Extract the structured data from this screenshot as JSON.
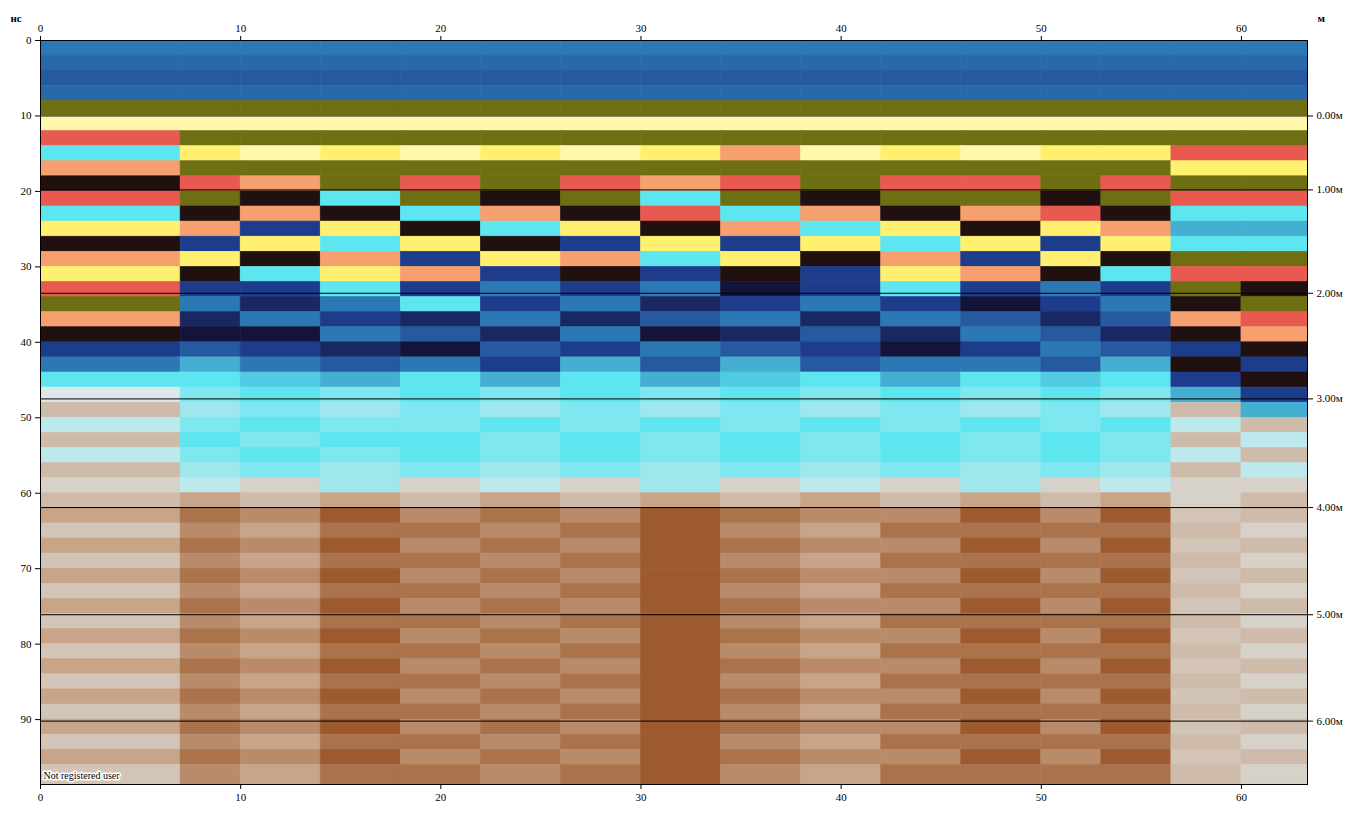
{
  "chart_data": {
    "type": "heatmap",
    "x_label": "м",
    "y_label": "нс",
    "xlim": [
      0,
      63.3
    ],
    "ylim": [
      0,
      98.6
    ],
    "y2lim": [
      0,
      98.6
    ],
    "xticks": [
      0,
      10,
      20,
      30,
      40,
      50,
      60
    ],
    "yticks": [
      0,
      10,
      20,
      30,
      40,
      50,
      60,
      70,
      80,
      90
    ],
    "y2ticks": [
      {
        "value": 10,
        "label": "0.00м"
      },
      {
        "value": 19.8,
        "label": "1.00м"
      },
      {
        "value": 33.5,
        "label": "2.00м"
      },
      {
        "value": 47.5,
        "label": "3.00м"
      },
      {
        "value": 61.9,
        "label": "4.00м"
      },
      {
        "value": 76.1,
        "label": "5.00м"
      },
      {
        "value": 90.2,
        "label": "6.00м"
      }
    ],
    "grid": true,
    "annotations": [
      {
        "text": "Not registered user"
      }
    ],
    "color_range": [
      -1,
      1
    ],
    "x_edges": [
      0,
      7,
      10,
      14,
      18,
      22,
      26,
      30,
      34,
      38,
      42,
      46,
      50,
      53,
      56.5,
      60,
      63.3
    ],
    "t_edges": [
      0,
      2,
      4,
      6,
      8,
      10,
      12,
      14,
      16,
      18,
      20,
      22,
      24,
      26,
      28,
      30,
      32,
      34,
      36,
      38,
      40,
      42,
      44,
      46,
      48,
      50,
      52,
      54,
      56,
      58,
      60,
      62,
      64,
      66,
      68,
      70,
      72,
      74,
      76,
      78,
      80,
      82,
      84,
      86,
      88,
      90,
      92,
      94,
      96,
      98.6
    ],
    "cells": [
      [
        -0.4,
        -0.4,
        -0.4,
        -0.4,
        -0.4,
        -0.4,
        -0.4,
        -0.4,
        -0.4,
        -0.4,
        -0.4,
        -0.4,
        -0.4,
        -0.4,
        -0.4,
        -0.4
      ],
      [
        -0.45,
        -0.45,
        -0.45,
        -0.45,
        -0.45,
        -0.45,
        -0.45,
        -0.45,
        -0.45,
        -0.45,
        -0.45,
        -0.45,
        -0.45,
        -0.45,
        -0.45,
        -0.45
      ],
      [
        -0.5,
        -0.5,
        -0.5,
        -0.5,
        -0.5,
        -0.5,
        -0.5,
        -0.5,
        -0.5,
        -0.5,
        -0.5,
        -0.5,
        -0.5,
        -0.5,
        -0.5,
        -0.5
      ],
      [
        -0.45,
        -0.45,
        -0.45,
        -0.45,
        -0.45,
        -0.45,
        -0.45,
        -0.45,
        -0.45,
        -0.45,
        -0.45,
        -0.45,
        -0.45,
        -0.45,
        -0.45,
        -0.45
      ],
      [
        -1,
        -1,
        -1,
        -1,
        -1,
        -1,
        -1,
        -1,
        -1,
        -1,
        -1,
        -1,
        -1,
        -1,
        -1,
        -1
      ],
      [
        0.95,
        0.95,
        0.95,
        0.95,
        0.95,
        0.95,
        0.95,
        0.95,
        0.95,
        0.95,
        0.95,
        0.95,
        0.95,
        0.95,
        0.95,
        0.95
      ],
      [
        0.6,
        -1,
        -1,
        -1,
        -1,
        -1,
        -1,
        -1,
        -1,
        -1,
        -1,
        -1,
        -1,
        -1,
        -1,
        -1
      ],
      [
        -0.2,
        0.9,
        0.95,
        0.9,
        0.95,
        0.9,
        0.95,
        0.9,
        0.75,
        0.95,
        0.9,
        0.95,
        0.9,
        0.9,
        0.6,
        0.6
      ],
      [
        0.75,
        -1,
        -1,
        -1,
        -1,
        -1,
        -1,
        -1,
        -1,
        -1,
        -1,
        -1,
        -1,
        -1,
        0.9,
        0.9
      ],
      [
        0.45,
        0.6,
        0.75,
        -1,
        0.6,
        -1,
        0.6,
        0.75,
        0.6,
        -1,
        0.6,
        0.6,
        -1,
        0.6,
        -1,
        -1
      ],
      [
        0.6,
        -1,
        0.45,
        -0.2,
        -1,
        0.45,
        -1,
        -0.2,
        -1,
        0.45,
        -1,
        -1,
        0.45,
        -1,
        0.6,
        0.6
      ],
      [
        -0.2,
        0.45,
        0.75,
        0.45,
        -0.2,
        0.75,
        0.45,
        0.6,
        -0.2,
        0.75,
        0.45,
        0.75,
        0.6,
        0.45,
        -0.2,
        -0.2
      ],
      [
        0.9,
        0.75,
        -0.6,
        0.9,
        0.45,
        -0.2,
        0.9,
        0.45,
        0.75,
        -0.2,
        0.9,
        0.45,
        0.9,
        0.75,
        -0.3,
        -0.3
      ],
      [
        0.45,
        -0.6,
        0.9,
        -0.2,
        0.9,
        0.45,
        -0.6,
        0.9,
        -0.6,
        0.9,
        -0.2,
        0.9,
        -0.6,
        0.9,
        -0.2,
        -0.2
      ],
      [
        0.75,
        0.9,
        0.45,
        0.75,
        -0.6,
        0.9,
        0.75,
        -0.2,
        0.9,
        0.45,
        0.75,
        -0.6,
        0.9,
        0.45,
        -1,
        -1
      ],
      [
        0.9,
        0.45,
        -0.2,
        0.9,
        0.75,
        -0.6,
        0.45,
        -0.6,
        0.45,
        -0.6,
        0.9,
        0.75,
        0.45,
        -0.2,
        0.6,
        0.6
      ],
      [
        0.6,
        -0.6,
        -0.6,
        -0.2,
        -0.6,
        -0.4,
        -0.6,
        -0.4,
        -0.8,
        -0.6,
        -0.2,
        -0.6,
        -0.4,
        -0.6,
        -1,
        0.45
      ],
      [
        -1,
        -0.4,
        -0.7,
        -0.4,
        -0.2,
        -0.6,
        -0.4,
        -0.7,
        -0.6,
        -0.4,
        -0.6,
        -0.8,
        -0.6,
        -0.4,
        0.45,
        -1
      ],
      [
        0.75,
        -0.7,
        -0.4,
        -0.6,
        -0.7,
        -0.4,
        -0.7,
        -0.5,
        -0.4,
        -0.7,
        -0.4,
        -0.5,
        -0.7,
        -0.5,
        0.75,
        0.6
      ],
      [
        0.45,
        -0.8,
        -0.8,
        -0.4,
        -0.5,
        -0.7,
        -0.4,
        -0.8,
        -0.7,
        -0.5,
        -0.7,
        -0.4,
        -0.5,
        -0.7,
        0.45,
        0.75
      ],
      [
        -0.6,
        -0.5,
        -0.6,
        -0.7,
        -0.8,
        -0.5,
        -0.6,
        -0.4,
        -0.5,
        -0.6,
        -0.8,
        -0.6,
        -0.4,
        -0.5,
        -0.6,
        0.45
      ],
      [
        -0.4,
        -0.3,
        -0.4,
        -0.5,
        -0.4,
        -0.6,
        -0.3,
        -0.5,
        -0.3,
        -0.5,
        -0.4,
        -0.4,
        -0.5,
        -0.3,
        0.45,
        -0.6
      ],
      [
        -0.2,
        -0.2,
        -0.25,
        -0.3,
        -0.2,
        -0.3,
        -0.2,
        -0.3,
        -0.25,
        -0.2,
        -0.3,
        -0.2,
        -0.25,
        -0.2,
        -0.6,
        0.45
      ],
      [
        0,
        -0.15,
        -0.2,
        -0.15,
        -0.2,
        -0.15,
        -0.2,
        -0.15,
        -0.2,
        -0.15,
        -0.2,
        -0.15,
        -0.2,
        -0.15,
        -0.3,
        -0.6
      ],
      [
        0.1,
        -0.1,
        -0.15,
        -0.1,
        -0.15,
        -0.1,
        -0.15,
        -0.1,
        -0.15,
        -0.1,
        -0.15,
        -0.1,
        -0.15,
        -0.1,
        0.1,
        -0.3
      ],
      [
        -0.05,
        -0.15,
        -0.2,
        -0.15,
        -0.15,
        -0.2,
        -0.15,
        -0.2,
        -0.15,
        -0.2,
        -0.15,
        -0.2,
        -0.15,
        -0.2,
        -0.05,
        0.1
      ],
      [
        0.1,
        -0.2,
        -0.15,
        -0.2,
        -0.2,
        -0.15,
        -0.2,
        -0.15,
        -0.2,
        -0.15,
        -0.2,
        -0.15,
        -0.2,
        -0.15,
        0.1,
        -0.05
      ],
      [
        -0.05,
        -0.15,
        -0.2,
        -0.15,
        -0.2,
        -0.15,
        -0.2,
        -0.15,
        -0.2,
        -0.15,
        -0.2,
        -0.15,
        -0.2,
        -0.15,
        -0.05,
        0.1
      ],
      [
        0.1,
        -0.1,
        -0.15,
        -0.1,
        -0.15,
        -0.1,
        -0.15,
        -0.1,
        -0.15,
        -0.1,
        -0.15,
        -0.1,
        -0.15,
        -0.1,
        0.1,
        -0.05
      ],
      [
        0.05,
        -0.05,
        0.05,
        -0.1,
        0.05,
        -0.05,
        0.05,
        -0.1,
        0.05,
        -0.05,
        0.05,
        -0.1,
        0.05,
        -0.05,
        0.05,
        0.05
      ],
      [
        0.1,
        0.15,
        0.1,
        0.15,
        0.1,
        0.15,
        0.1,
        0.15,
        0.1,
        0.15,
        0.1,
        0.15,
        0.1,
        0.15,
        0.05,
        0.1
      ],
      [
        0.15,
        0.25,
        0.2,
        0.3,
        0.2,
        0.25,
        0.2,
        0.3,
        0.25,
        0.2,
        0.2,
        0.3,
        0.2,
        0.3,
        0.08,
        0.1
      ],
      [
        0.08,
        0.2,
        0.15,
        0.25,
        0.25,
        0.2,
        0.25,
        0.3,
        0.2,
        0.15,
        0.25,
        0.25,
        0.25,
        0.25,
        0.1,
        0.05
      ],
      [
        0.15,
        0.25,
        0.2,
        0.3,
        0.2,
        0.25,
        0.2,
        0.3,
        0.25,
        0.2,
        0.2,
        0.3,
        0.2,
        0.3,
        0.08,
        0.1
      ],
      [
        0.08,
        0.2,
        0.15,
        0.25,
        0.25,
        0.2,
        0.25,
        0.3,
        0.2,
        0.15,
        0.25,
        0.25,
        0.25,
        0.25,
        0.1,
        0.05
      ],
      [
        0.15,
        0.25,
        0.2,
        0.3,
        0.2,
        0.25,
        0.2,
        0.3,
        0.25,
        0.2,
        0.2,
        0.3,
        0.2,
        0.3,
        0.08,
        0.1
      ],
      [
        0.08,
        0.2,
        0.15,
        0.25,
        0.25,
        0.2,
        0.25,
        0.3,
        0.2,
        0.15,
        0.25,
        0.25,
        0.25,
        0.25,
        0.1,
        0.05
      ],
      [
        0.15,
        0.25,
        0.2,
        0.3,
        0.2,
        0.25,
        0.2,
        0.3,
        0.25,
        0.2,
        0.2,
        0.3,
        0.2,
        0.3,
        0.08,
        0.1
      ],
      [
        0.08,
        0.2,
        0.15,
        0.25,
        0.25,
        0.2,
        0.25,
        0.3,
        0.2,
        0.15,
        0.25,
        0.25,
        0.25,
        0.25,
        0.1,
        0.05
      ],
      [
        0.15,
        0.25,
        0.2,
        0.3,
        0.2,
        0.25,
        0.2,
        0.3,
        0.25,
        0.2,
        0.2,
        0.3,
        0.2,
        0.3,
        0.08,
        0.1
      ],
      [
        0.08,
        0.2,
        0.15,
        0.25,
        0.25,
        0.2,
        0.25,
        0.3,
        0.2,
        0.15,
        0.25,
        0.25,
        0.25,
        0.25,
        0.1,
        0.05
      ],
      [
        0.15,
        0.25,
        0.2,
        0.3,
        0.2,
        0.25,
        0.2,
        0.3,
        0.25,
        0.2,
        0.2,
        0.3,
        0.2,
        0.3,
        0.08,
        0.1
      ],
      [
        0.08,
        0.2,
        0.15,
        0.25,
        0.25,
        0.2,
        0.25,
        0.3,
        0.2,
        0.15,
        0.25,
        0.25,
        0.25,
        0.25,
        0.1,
        0.05
      ],
      [
        0.15,
        0.25,
        0.2,
        0.3,
        0.2,
        0.25,
        0.2,
        0.3,
        0.25,
        0.2,
        0.2,
        0.3,
        0.2,
        0.3,
        0.08,
        0.1
      ],
      [
        0.08,
        0.2,
        0.15,
        0.25,
        0.25,
        0.2,
        0.25,
        0.3,
        0.2,
        0.15,
        0.25,
        0.25,
        0.25,
        0.25,
        0.1,
        0.05
      ],
      [
        0.15,
        0.25,
        0.2,
        0.3,
        0.2,
        0.25,
        0.2,
        0.3,
        0.25,
        0.2,
        0.2,
        0.3,
        0.2,
        0.3,
        0.08,
        0.1
      ],
      [
        0.08,
        0.2,
        0.15,
        0.25,
        0.25,
        0.2,
        0.25,
        0.3,
        0.2,
        0.15,
        0.25,
        0.25,
        0.25,
        0.25,
        0.1,
        0.05
      ],
      [
        0.15,
        0.25,
        0.2,
        0.3,
        0.2,
        0.25,
        0.2,
        0.3,
        0.25,
        0.2,
        0.2,
        0.3,
        0.2,
        0.3,
        0.08,
        0.1
      ],
      [
        0.08,
        0.2,
        0.15,
        0.25,
        0.25,
        0.2,
        0.25,
        0.3,
        0.2,
        0.15,
        0.25,
        0.25,
        0.25,
        0.25,
        0.1,
        0.05
      ]
    ]
  }
}
